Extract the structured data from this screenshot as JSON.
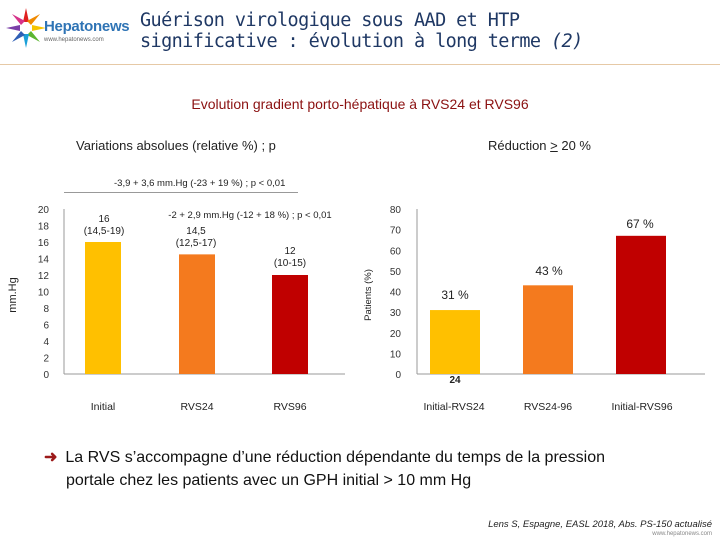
{
  "header": {
    "logo_name": "Hepatonews",
    "logo_url": "www.hepatonews.com",
    "title_line1": "Guérison virologique sous AAD et HTP",
    "title_line2": "significative : évolution à long terme",
    "title_suffix": "(2)"
  },
  "subtitle": "Evolution gradient porto-hépatique à RVS24 et RVS96",
  "left_panel": {
    "heading": "Variations absolues (relative %) ; p",
    "delta_note": "-3,9 + 3,6 mm.Hg (-23 + 19 %) ; p < 0,01"
  },
  "right_panel": {
    "heading_prefix": "Réduction ",
    "heading_underlined": ">",
    "heading_suffix": " 20 %"
  },
  "chart_data": [
    {
      "type": "bar",
      "ylabel": "mm.Hg",
      "ylim": [
        0,
        20
      ],
      "yticks": [
        "0",
        "2",
        "4",
        "6",
        "8",
        "10",
        "12",
        "14",
        "16",
        "18",
        "20"
      ],
      "categories": [
        "Initial",
        "RVS24",
        "RVS96"
      ],
      "values": [
        16,
        14.5,
        12
      ],
      "value_labels": [
        "16",
        "14,5",
        "12"
      ],
      "range_labels": [
        "(14,5-19)",
        "(12,5-17)",
        "(10-15)"
      ],
      "colors": [
        "#ffc000",
        "#f47a1e",
        "#c00000"
      ],
      "annotation": "-2 + 2,9 mm.Hg (-12 + 18 %) ; p < 0,01"
    },
    {
      "type": "bar",
      "ylabel": "Patients (%)",
      "ylim": [
        0,
        80
      ],
      "yticks": [
        "0",
        "10",
        "20",
        "30",
        "40",
        "50",
        "60",
        "70",
        "80"
      ],
      "categories": [
        "Initial-RVS24",
        "RVS24-96",
        "Initial-RVS96"
      ],
      "values": [
        31,
        43,
        67
      ],
      "value_labels": [
        "31 %",
        "43 %",
        "67 %"
      ],
      "colors": [
        "#ffc000",
        "#f47a1e",
        "#c00000"
      ],
      "n_label": "24"
    }
  ],
  "conclusion": {
    "line1": "La RVS s’accompagne d’une réduction dépendante du temps de la pression",
    "line2": "portale chez les patients avec un GPH initial > 10 mm Hg"
  },
  "citation": "Lens S, Espagne, EASL 2018, Abs. PS-150 actualisé",
  "footer_url": "www.hepatonews.com"
}
